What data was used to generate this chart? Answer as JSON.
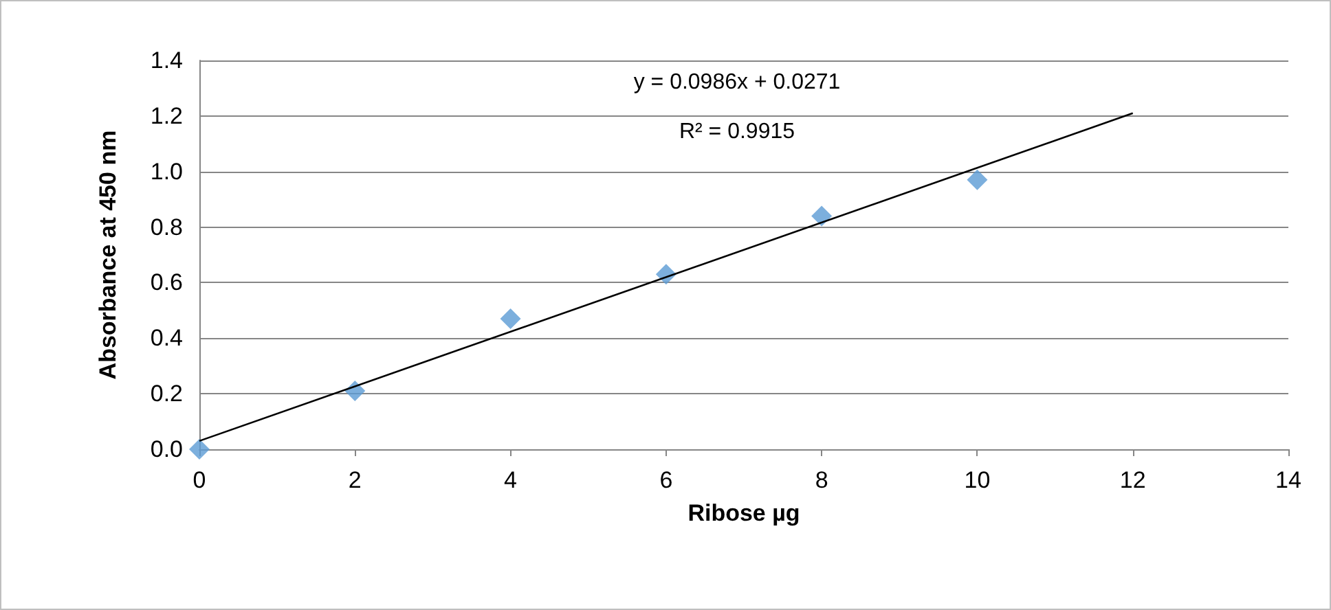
{
  "chart_data": {
    "type": "scatter",
    "xlabel": "Ribose µg",
    "ylabel": "Absorbance at 450 nm",
    "x": [
      0,
      2,
      4,
      6,
      8,
      10
    ],
    "series": [
      {
        "color": "#5b9bd5",
        "values": [
          0,
          0.21,
          0.47,
          0.63,
          0.84,
          0.97
        ]
      },
      {
        "type": "line",
        "color": "#000000",
        "x": [
          0,
          12
        ],
        "values": [
          0.03,
          1.21
        ],
        "marker": "none"
      }
    ],
    "marker": "diamond",
    "xlim": [
      0,
      14
    ],
    "xticks": [
      0,
      2,
      4,
      6,
      8,
      10,
      12,
      14
    ],
    "ylim": [
      0,
      1.4
    ],
    "yticks": [
      {
        "value": 0,
        "label": "0.0"
      },
      {
        "value": 0.2,
        "label": "0.2"
      },
      {
        "value": 0.4,
        "label": "0.4"
      },
      {
        "value": 0.6,
        "label": "0.6"
      },
      {
        "value": 0.8,
        "label": "0.8"
      },
      {
        "value": 1.0,
        "label": "1.0"
      },
      {
        "value": 1.2,
        "label": "1.2"
      },
      {
        "value": 1.4,
        "label": "1.4"
      }
    ],
    "grid": "y",
    "annotations": [
      "y = 0.0986x + 0.0271",
      "R² = 0.9915"
    ]
  }
}
